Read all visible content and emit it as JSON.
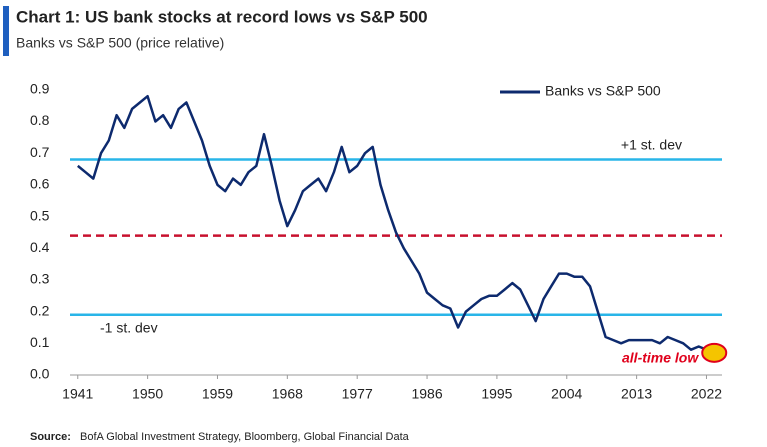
{
  "chart_data": {
    "type": "line",
    "title": "Chart 1: US bank stocks at record lows vs S&P 500",
    "subtitle": "Banks vs S&P 500 (price relative)",
    "source_label": "Source:",
    "source": "BofA Global Investment Strategy, Bloomberg, Global Financial Data",
    "x": [
      1941,
      1942,
      1943,
      1944,
      1945,
      1946,
      1947,
      1948,
      1949,
      1950,
      1951,
      1952,
      1953,
      1954,
      1955,
      1956,
      1957,
      1958,
      1959,
      1960,
      1961,
      1962,
      1963,
      1964,
      1965,
      1966,
      1967,
      1968,
      1969,
      1970,
      1971,
      1972,
      1973,
      1974,
      1975,
      1976,
      1977,
      1978,
      1979,
      1980,
      1981,
      1982,
      1983,
      1984,
      1985,
      1986,
      1987,
      1988,
      1989,
      1990,
      1991,
      1992,
      1993,
      1994,
      1995,
      1996,
      1997,
      1998,
      1999,
      2000,
      2001,
      2002,
      2003,
      2004,
      2005,
      2006,
      2007,
      2008,
      2009,
      2010,
      2011,
      2012,
      2013,
      2014,
      2015,
      2016,
      2017,
      2018,
      2019,
      2020,
      2021,
      2022,
      2023
    ],
    "series": [
      {
        "name": "Banks vs S&P 500",
        "color": "#0d2a6e",
        "values": [
          0.66,
          0.64,
          0.62,
          0.7,
          0.74,
          0.82,
          0.78,
          0.84,
          0.86,
          0.88,
          0.8,
          0.82,
          0.78,
          0.84,
          0.86,
          0.8,
          0.74,
          0.66,
          0.6,
          0.58,
          0.62,
          0.6,
          0.64,
          0.66,
          0.76,
          0.66,
          0.55,
          0.47,
          0.52,
          0.58,
          0.6,
          0.62,
          0.58,
          0.64,
          0.72,
          0.64,
          0.66,
          0.7,
          0.72,
          0.6,
          0.52,
          0.45,
          0.4,
          0.36,
          0.32,
          0.26,
          0.24,
          0.22,
          0.21,
          0.15,
          0.2,
          0.22,
          0.24,
          0.25,
          0.25,
          0.27,
          0.29,
          0.27,
          0.22,
          0.17,
          0.24,
          0.28,
          0.32,
          0.32,
          0.31,
          0.31,
          0.28,
          0.2,
          0.12,
          0.11,
          0.1,
          0.11,
          0.11,
          0.11,
          0.11,
          0.1,
          0.12,
          0.11,
          0.1,
          0.08,
          0.09,
          0.08,
          0.07
        ]
      }
    ],
    "reference_lines": [
      {
        "value": 0.68,
        "label": "+1 st. dev",
        "color": "#29b5e8",
        "style": "solid"
      },
      {
        "value": 0.44,
        "color": "#c8102e",
        "style": "dashed"
      },
      {
        "value": 0.19,
        "label": "-1 st. dev",
        "color": "#29b5e8",
        "style": "solid"
      }
    ],
    "annotation": "all-time low",
    "annotation_color": "#e0001b",
    "xlim": [
      1940,
      2024
    ],
    "xticks": [
      1941,
      1950,
      1959,
      1968,
      1977,
      1986,
      1995,
      2004,
      2013,
      2022
    ],
    "ylim": [
      0,
      0.95
    ],
    "yticks": [
      {
        "value": 0,
        "label": "0.0"
      },
      0.1,
      0.2,
      0.3,
      0.4,
      0.5,
      0.6,
      0.7,
      0.8,
      0.9
    ],
    "legend": "upper right"
  }
}
